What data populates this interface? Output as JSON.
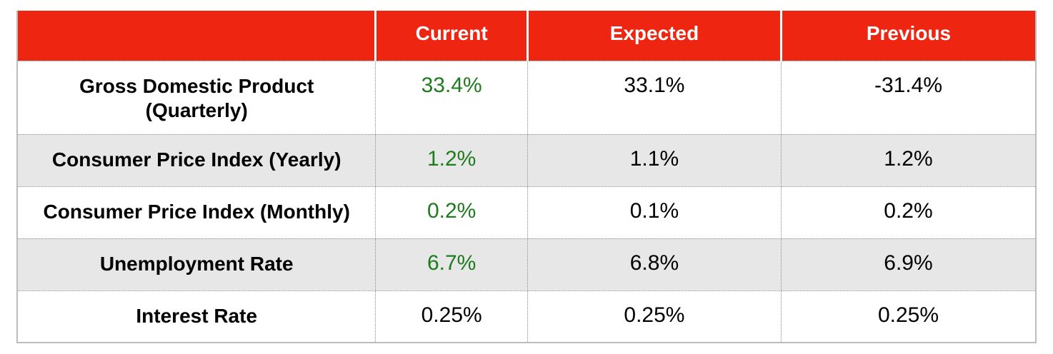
{
  "table": {
    "columns": [
      "",
      "Current",
      "Expected",
      "Previous"
    ],
    "rows": [
      {
        "label": "Gross Domestic Product (Quarterly)",
        "current": "33.4%",
        "expected": "33.1%",
        "previous": "-31.4%",
        "current_highlight": true
      },
      {
        "label": "Consumer Price Index (Yearly)",
        "current": "1.2%",
        "expected": "1.1%",
        "previous": "1.2%",
        "current_highlight": true
      },
      {
        "label": "Consumer Price Index (Monthly)",
        "current": "0.2%",
        "expected": "0.1%",
        "previous": "0.2%",
        "current_highlight": true
      },
      {
        "label": "Unemployment Rate",
        "current": "6.7%",
        "expected": "6.8%",
        "previous": "6.9%",
        "current_highlight": true
      },
      {
        "label": "Interest Rate",
        "current": "0.25%",
        "expected": "0.25%",
        "previous": "0.25%",
        "current_highlight": false
      }
    ],
    "colors": {
      "header_bg": "#ed2511",
      "header_text": "#ffffff",
      "highlight_text": "#1e7b1e",
      "row_alt_bg": "#e7e7e7",
      "body_text": "#000000",
      "border": "#8c8c8c",
      "outer_border": "#bdbdbd"
    }
  },
  "chart_data": {
    "type": "table",
    "title": "",
    "categories": [
      "Gross Domestic Product (Quarterly)",
      "Consumer Price Index (Yearly)",
      "Consumer Price Index (Monthly)",
      "Unemployment Rate",
      "Interest Rate"
    ],
    "series": [
      {
        "name": "Current",
        "values": [
          33.4,
          1.2,
          0.2,
          6.7,
          0.25
        ]
      },
      {
        "name": "Expected",
        "values": [
          33.1,
          1.1,
          0.1,
          6.8,
          0.25
        ]
      },
      {
        "name": "Previous",
        "values": [
          -31.4,
          1.2,
          0.2,
          6.9,
          0.25
        ]
      }
    ],
    "units": "%"
  }
}
